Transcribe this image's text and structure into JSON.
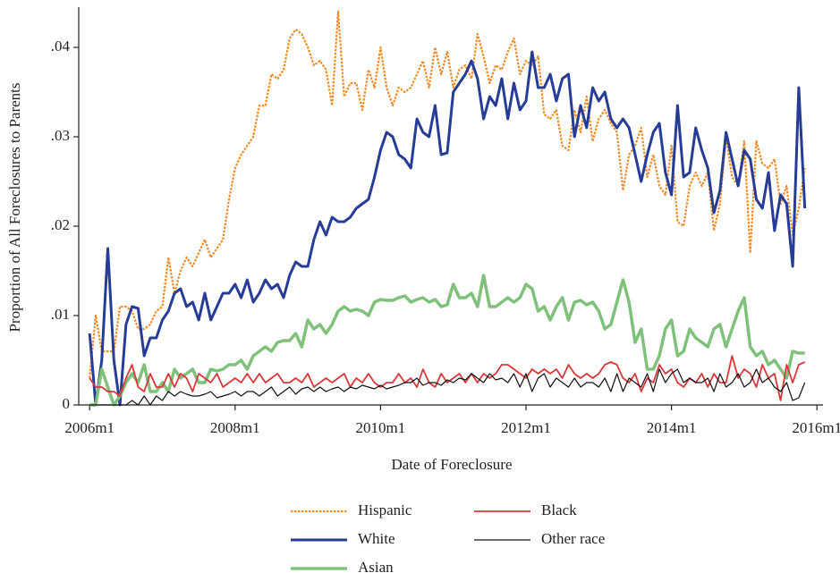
{
  "chart_data": {
    "type": "line",
    "ylabel": "Proportion of All Foreclosures to Parents",
    "xlabel": "Date of Foreclosure",
    "xlim": [
      550.2,
      673
    ],
    "xticks": [
      {
        "value": 552,
        "label": "2006m1"
      },
      {
        "value": 576,
        "label": "2008m1"
      },
      {
        "value": 600,
        "label": "2010m1"
      },
      {
        "value": 624,
        "label": "2012m1"
      },
      {
        "value": 648,
        "label": "2014m1"
      },
      {
        "value": 672,
        "label": "2016m1"
      }
    ],
    "ylim": [
      0,
      0.0445
    ],
    "yticks": [
      0,
      {
        "value": 0.01,
        "label": ".01"
      },
      {
        "value": 0.02,
        "label": ".02"
      },
      {
        "value": 0.03,
        "label": ".03"
      },
      {
        "value": 0.04,
        "label": ".04"
      }
    ],
    "grid": false,
    "legend": "bottom",
    "x": [
      552,
      553,
      554,
      555,
      556,
      557,
      558,
      559,
      560,
      561,
      562,
      563,
      564,
      565,
      566,
      567,
      568,
      569,
      570,
      571,
      572,
      573,
      574,
      575,
      576,
      577,
      578,
      579,
      580,
      581,
      582,
      583,
      584,
      585,
      586,
      587,
      588,
      589,
      590,
      591,
      592,
      593,
      594,
      595,
      596,
      597,
      598,
      599,
      600,
      601,
      602,
      603,
      604,
      605,
      606,
      607,
      608,
      609,
      610,
      611,
      612,
      613,
      614,
      615,
      616,
      617,
      618,
      619,
      620,
      621,
      622,
      623,
      624,
      625,
      626,
      627,
      628,
      629,
      630,
      631,
      632,
      633,
      634,
      635,
      636,
      637,
      638,
      639,
      640,
      641,
      642,
      643,
      644,
      645,
      646,
      647,
      648,
      649,
      650,
      651,
      652,
      653,
      654,
      655,
      656,
      657,
      658,
      659,
      660,
      661,
      662,
      663,
      664,
      665,
      666,
      667,
      668,
      669,
      670
    ],
    "series": [
      {
        "name": "Hispanic",
        "color": "#f08a24",
        "dash": "dotted",
        "width": 2.2,
        "values": [
          0.003,
          0.01,
          0.006,
          0.006,
          0.006,
          0.011,
          0.011,
          0.0105,
          0.0085,
          0.0085,
          0.009,
          0.0105,
          0.011,
          0.0165,
          0.0125,
          0.015,
          0.0165,
          0.0155,
          0.017,
          0.0185,
          0.0165,
          0.0175,
          0.0185,
          0.023,
          0.0265,
          0.028,
          0.029,
          0.03,
          0.0335,
          0.0335,
          0.037,
          0.0365,
          0.0375,
          0.041,
          0.042,
          0.0415,
          0.04,
          0.038,
          0.0385,
          0.0375,
          0.0335,
          0.044,
          0.0345,
          0.036,
          0.036,
          0.033,
          0.0375,
          0.0355,
          0.04,
          0.0355,
          0.0335,
          0.0355,
          0.035,
          0.0355,
          0.037,
          0.0385,
          0.0355,
          0.04,
          0.037,
          0.0395,
          0.0355,
          0.0375,
          0.038,
          0.0365,
          0.0415,
          0.039,
          0.036,
          0.038,
          0.0375,
          0.0395,
          0.041,
          0.037,
          0.0385,
          0.038,
          0.039,
          0.0325,
          0.032,
          0.033,
          0.029,
          0.0285,
          0.033,
          0.0305,
          0.0345,
          0.0295,
          0.032,
          0.033,
          0.0315,
          0.0305,
          0.024,
          0.028,
          0.029,
          0.031,
          0.0255,
          0.028,
          0.0245,
          0.0235,
          0.029,
          0.0205,
          0.02,
          0.0245,
          0.026,
          0.0245,
          0.026,
          0.0195,
          0.0225,
          0.03,
          0.0255,
          0.0245,
          0.0295,
          0.017,
          0.0295,
          0.027,
          0.0265,
          0.0275,
          0.0225,
          0.0245,
          0.019,
          0.022,
          0.0265
        ]
      },
      {
        "name": "White",
        "color": "#263c96",
        "width": 3,
        "values": [
          0.008,
          0,
          0.005,
          0.0175,
          0.005,
          0,
          0.009,
          0.011,
          0.0108,
          0.0055,
          0.0075,
          0.0075,
          0.0095,
          0.0105,
          0.0125,
          0.013,
          0.011,
          0.0115,
          0.0095,
          0.0125,
          0.0095,
          0.011,
          0.0125,
          0.0125,
          0.0135,
          0.012,
          0.014,
          0.0115,
          0.0125,
          0.014,
          0.013,
          0.0135,
          0.012,
          0.0145,
          0.016,
          0.0155,
          0.0155,
          0.0185,
          0.0205,
          0.019,
          0.021,
          0.0205,
          0.0205,
          0.021,
          0.022,
          0.0225,
          0.023,
          0.0255,
          0.0285,
          0.0305,
          0.03,
          0.028,
          0.0275,
          0.0265,
          0.032,
          0.0305,
          0.03,
          0.0335,
          0.028,
          0.0282,
          0.035,
          0.036,
          0.037,
          0.0385,
          0.0365,
          0.032,
          0.0345,
          0.0335,
          0.0365,
          0.032,
          0.036,
          0.033,
          0.034,
          0.0395,
          0.0355,
          0.0355,
          0.037,
          0.034,
          0.0365,
          0.037,
          0.03,
          0.0335,
          0.031,
          0.0355,
          0.034,
          0.035,
          0.032,
          0.031,
          0.032,
          0.031,
          0.028,
          0.025,
          0.028,
          0.0305,
          0.0315,
          0.026,
          0.0235,
          0.0335,
          0.0255,
          0.026,
          0.031,
          0.0285,
          0.0265,
          0.0215,
          0.024,
          0.0305,
          0.0275,
          0.0245,
          0.0285,
          0.0275,
          0.023,
          0.022,
          0.026,
          0.0195,
          0.0235,
          0.0225,
          0.0155,
          0.0355,
          0.022
        ]
      },
      {
        "name": "Asian",
        "color": "#7fc07a",
        "width": 3.5,
        "values": [
          0,
          0,
          0.004,
          0.002,
          0,
          0.001,
          0.0025,
          0.0035,
          0.0025,
          0.0045,
          0.0015,
          0.0015,
          0.0025,
          0.0015,
          0.004,
          0.003,
          0.0035,
          0.004,
          0.0025,
          0.0025,
          0.004,
          0.0038,
          0.004,
          0.0045,
          0.0045,
          0.005,
          0.004,
          0.0055,
          0.006,
          0.0065,
          0.006,
          0.007,
          0.0072,
          0.0072,
          0.008,
          0.0065,
          0.0095,
          0.0085,
          0.009,
          0.008,
          0.009,
          0.0105,
          0.011,
          0.0105,
          0.0107,
          0.0105,
          0.01,
          0.0115,
          0.0118,
          0.0117,
          0.0117,
          0.012,
          0.0122,
          0.0115,
          0.0118,
          0.012,
          0.0115,
          0.0118,
          0.011,
          0.0112,
          0.0135,
          0.012,
          0.012,
          0.0125,
          0.011,
          0.0145,
          0.011,
          0.011,
          0.0115,
          0.012,
          0.0115,
          0.012,
          0.0135,
          0.013,
          0.0105,
          0.011,
          0.0095,
          0.011,
          0.012,
          0.0095,
          0.0115,
          0.0117,
          0.0112,
          0.0115,
          0.0105,
          0.0085,
          0.009,
          0.0115,
          0.014,
          0.0115,
          0.007,
          0.0085,
          0.004,
          0.004,
          0.0055,
          0.0085,
          0.0095,
          0.0055,
          0.006,
          0.0085,
          0.0075,
          0.007,
          0.0065,
          0.0085,
          0.009,
          0.0065,
          0.0085,
          0.0105,
          0.012,
          0.0065,
          0.0055,
          0.006,
          0.0045,
          0.005,
          0.004,
          0.003,
          0.006,
          0.0058,
          0.0058
        ]
      },
      {
        "name": "Black",
        "color": "#d9383a",
        "width": 1.8,
        "values": [
          0.003,
          0.002,
          0.002,
          0.0015,
          0.0015,
          0.001,
          0.003,
          0.0045,
          0.002,
          0.0015,
          0.0035,
          0.002,
          0.002,
          0.0035,
          0.002,
          0.0035,
          0.003,
          0.0015,
          0.0035,
          0.003,
          0.0025,
          0.0035,
          0.002,
          0.0025,
          0.003,
          0.0025,
          0.0035,
          0.0025,
          0.0035,
          0.0025,
          0.003,
          0.0035,
          0.0025,
          0.0025,
          0.003,
          0.0025,
          0.0035,
          0.002,
          0.0025,
          0.003,
          0.0025,
          0.003,
          0.0035,
          0.002,
          0.003,
          0.0025,
          0.0035,
          0.0025,
          0.002,
          0.0025,
          0.0025,
          0.0035,
          0.0025,
          0.003,
          0.002,
          0.004,
          0.0025,
          0.002,
          0.0035,
          0.0025,
          0.003,
          0.0035,
          0.0025,
          0.0035,
          0.0025,
          0.0035,
          0.003,
          0.0035,
          0.0045,
          0.0045,
          0.004,
          0.0035,
          0.003,
          0.004,
          0.0035,
          0.004,
          0.0035,
          0.004,
          0.003,
          0.0045,
          0.0035,
          0.003,
          0.0035,
          0.003,
          0.0035,
          0.0045,
          0.0048,
          0.0045,
          0.003,
          0.0025,
          0.0035,
          0.0015,
          0.003,
          0.0025,
          0.0045,
          0.0035,
          0.004,
          0.0025,
          0.002,
          0.003,
          0.0025,
          0.0035,
          0.002,
          0.0035,
          0.0025,
          0.0025,
          0.0055,
          0.003,
          0.004,
          0.0035,
          0.002,
          0.0045,
          0.003,
          0.0035,
          0.0005,
          0.0045,
          0.0025,
          0.0045,
          0.0048
        ]
      },
      {
        "name": "Other race",
        "color": "#111111",
        "width": 1.2,
        "values": [
          0,
          0,
          0,
          0,
          0,
          0,
          0,
          0.0005,
          0,
          0.001,
          0,
          0.001,
          0.0005,
          0.0015,
          0.001,
          0.0015,
          0.0012,
          0.001,
          0.001,
          0.0012,
          0.0015,
          0.0008,
          0.001,
          0.0012,
          0.0015,
          0.001,
          0.0015,
          0.0015,
          0.001,
          0.0015,
          0.002,
          0.001,
          0.0015,
          0.002,
          0.0012,
          0.0018,
          0.002,
          0.0015,
          0.002,
          0.0015,
          0.0018,
          0.002,
          0.0015,
          0.002,
          0.0018,
          0.0022,
          0.002,
          0.0018,
          0.0022,
          0.0018,
          0.002,
          0.0022,
          0.0025,
          0.0025,
          0.003,
          0.0022,
          0.0025,
          0.0025,
          0.0022,
          0.0028,
          0.0025,
          0.003,
          0.0028,
          0.0035,
          0.003,
          0.0025,
          0.0035,
          0.0028,
          0.003,
          0.0025,
          0.0035,
          0.002,
          0.0035,
          0.0015,
          0.003,
          0.0035,
          0.002,
          0.003,
          0.0025,
          0.002,
          0.003,
          0.002,
          0.0025,
          0.0025,
          0.002,
          0.003,
          0.0015,
          0.0035,
          0.0015,
          0.003,
          0.0025,
          0.002,
          0.0035,
          0.0015,
          0.004,
          0.0025,
          0.0035,
          0.004,
          0.0025,
          0.003,
          0.0025,
          0.0025,
          0.003,
          0.0015,
          0.0035,
          0.002,
          0.0025,
          0.0035,
          0.002,
          0.0025,
          0.004,
          0.0025,
          0.003,
          0.002,
          0.0015,
          0.0025,
          0.0005,
          0.0008,
          0.0025
        ]
      }
    ]
  }
}
